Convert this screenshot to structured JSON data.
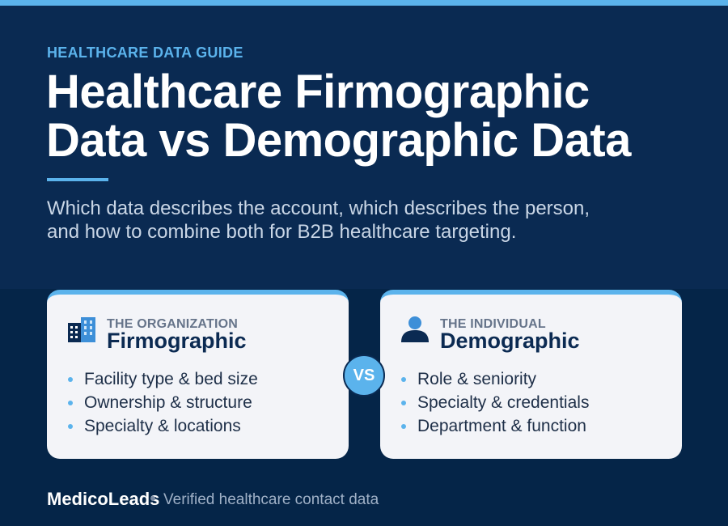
{
  "colors": {
    "accent": "#5bb3ec",
    "hero_bg": "#0a2a52",
    "page_bg": "#052548",
    "card_bg": "#f3f4f8",
    "heading": "#0b2a52"
  },
  "header": {
    "eyebrow": "HEALTHCARE DATA GUIDE",
    "title_line1": "Healthcare Firmographic",
    "title_line2": "Data vs Demographic Data",
    "subtitle_line1": "Which data describes the account, which describes the person,",
    "subtitle_line2": "and how to combine both for B2B healthcare targeting."
  },
  "cards": [
    {
      "icon": "building-icon",
      "kicker": "THE ORGANIZATION",
      "heading": "Firmographic",
      "items": [
        "Facility type & bed size",
        "Ownership & structure",
        "Specialty & locations"
      ]
    },
    {
      "icon": "person-icon",
      "kicker": "THE INDIVIDUAL",
      "heading": "Demographic",
      "items": [
        "Role & seniority",
        "Specialty & credentials",
        "Department & function"
      ]
    }
  ],
  "vs_label": "VS",
  "footer": {
    "brand": "MedicoLeads",
    "tagline": "Verified healthcare contact data"
  }
}
